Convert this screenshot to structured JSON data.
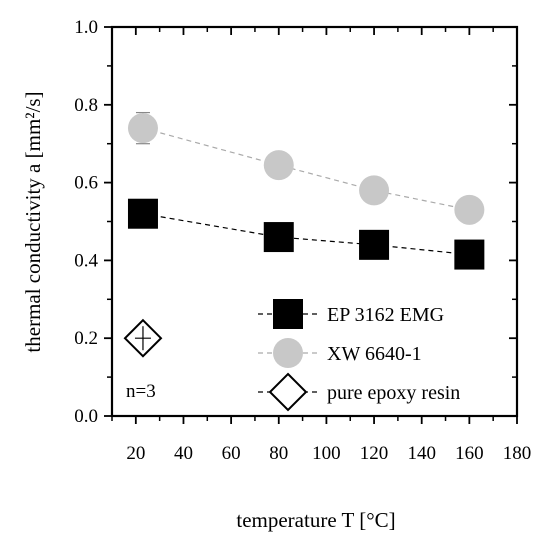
{
  "chart_data": {
    "type": "scatter",
    "xlabel": "temperature T [°C]",
    "ylabel": "thermal conductivity a [mm²/s]",
    "xlim": [
      10,
      180
    ],
    "ylim": [
      0,
      1.0
    ],
    "x_ticks": [
      20,
      40,
      60,
      80,
      100,
      120,
      140,
      160,
      180
    ],
    "y_ticks": [
      "0.0",
      "0.2",
      "0.4",
      "0.6",
      "0.8",
      "1.0"
    ],
    "grid": false,
    "legend_position": "bottom-right",
    "annotation": "n=3",
    "series": [
      {
        "name": "EP 3162 EMG",
        "marker": "square",
        "color": "#000000",
        "line_color": "#000000",
        "x": [
          23,
          80,
          120,
          160
        ],
        "y": [
          0.52,
          0.46,
          0.44,
          0.415
        ],
        "err": [
          0.01,
          0.005,
          0.005,
          0.005
        ]
      },
      {
        "name": "XW 6640-1",
        "marker": "circle",
        "color": "#c8c8c8",
        "line_color": "#aaaaaa",
        "x": [
          23,
          80,
          120,
          160
        ],
        "y": [
          0.74,
          0.645,
          0.58,
          0.53
        ],
        "err": [
          0.04,
          0.01,
          0.01,
          0.01
        ]
      },
      {
        "name": "pure epoxy resin",
        "marker": "diamond",
        "color": "#ffffff",
        "line_color": "#000000",
        "x": [
          23
        ],
        "y": [
          0.2
        ],
        "err": [
          0.02
        ]
      }
    ]
  }
}
